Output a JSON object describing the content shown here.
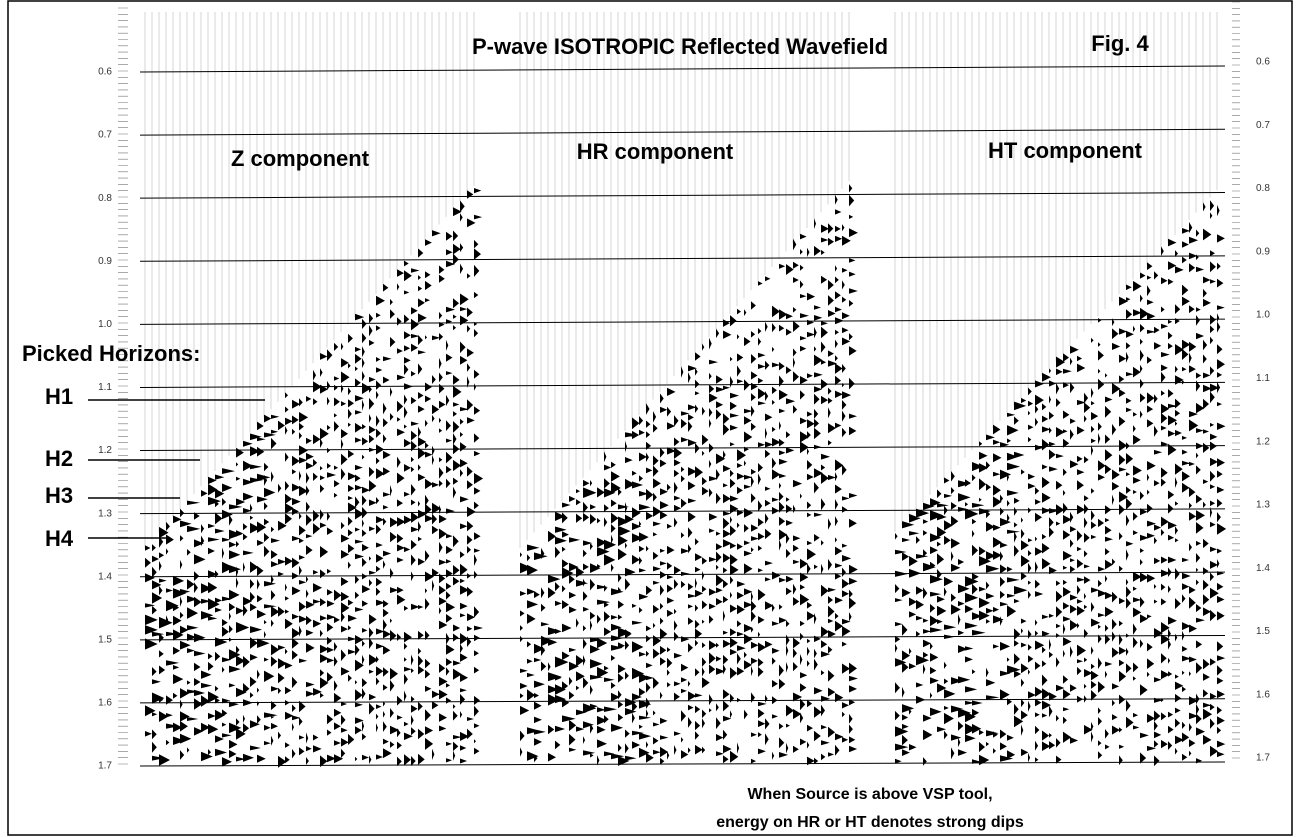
{
  "title": "P-wave  ISOTROPIC Reflected Wavefield",
  "figure_label": "Fig. 4",
  "panels": [
    "Z component",
    "HR component",
    "HT component"
  ],
  "time_axis": {
    "left_ticks": [
      "0.6",
      "0.7",
      "0.8",
      "0.9",
      "1.0",
      "1.1",
      "1.2",
      "1.3",
      "1.4",
      "1.5",
      "1.6",
      "1.7"
    ],
    "right_ticks": [
      "0.6",
      "0.7",
      "0.8",
      "0.9",
      "1.0",
      "1.1",
      "1.2",
      "1.3",
      "1.4",
      "1.5",
      "1.6",
      "1.7"
    ]
  },
  "horizons": {
    "heading": "Picked Horizons:",
    "labels": [
      "H1",
      "H2",
      "H3",
      "H4"
    ]
  },
  "caption": [
    "When Source is above VSP tool,",
    "energy  on HR or HT denotes strong dips"
  ]
}
